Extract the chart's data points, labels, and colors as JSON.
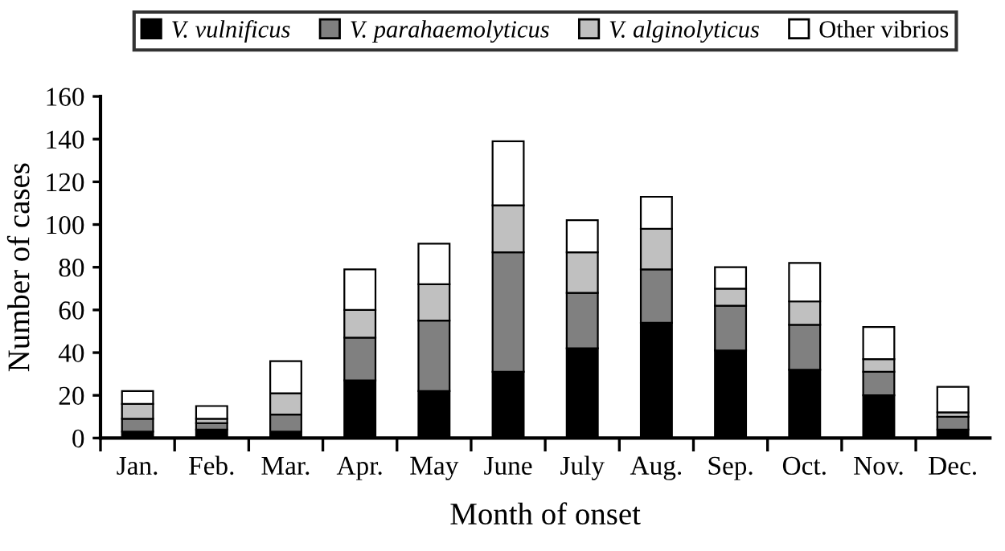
{
  "chart_data": {
    "type": "bar",
    "stacked": true,
    "xlabel": "Month of onset",
    "ylabel": "Number of cases",
    "categories": [
      "Jan.",
      "Feb.",
      "Mar.",
      "Apr.",
      "May",
      "June",
      "July",
      "Aug.",
      "Sep.",
      "Oct.",
      "Nov.",
      "Dec."
    ],
    "series": [
      {
        "name": "V. vulnificus",
        "color": "#000000",
        "values": [
          3,
          4,
          3,
          27,
          22,
          31,
          42,
          54,
          41,
          32,
          20,
          4
        ]
      },
      {
        "name": "V. parahaemolyticus",
        "color": "#808080",
        "values": [
          6,
          3,
          8,
          20,
          33,
          56,
          26,
          25,
          21,
          21,
          11,
          6
        ]
      },
      {
        "name": "V. alginolyticus",
        "color": "#c0c0c0",
        "values": [
          7,
          2,
          10,
          13,
          17,
          22,
          19,
          19,
          8,
          11,
          6,
          2
        ]
      },
      {
        "name": "Other vibrios",
        "color": "#ffffff",
        "values": [
          6,
          6,
          15,
          19,
          19,
          30,
          15,
          15,
          10,
          18,
          15,
          12
        ]
      }
    ],
    "ylim": [
      0,
      160
    ],
    "yticks": [
      0,
      20,
      40,
      60,
      80,
      100,
      120,
      140,
      160
    ],
    "grid": false,
    "legend": "top"
  }
}
